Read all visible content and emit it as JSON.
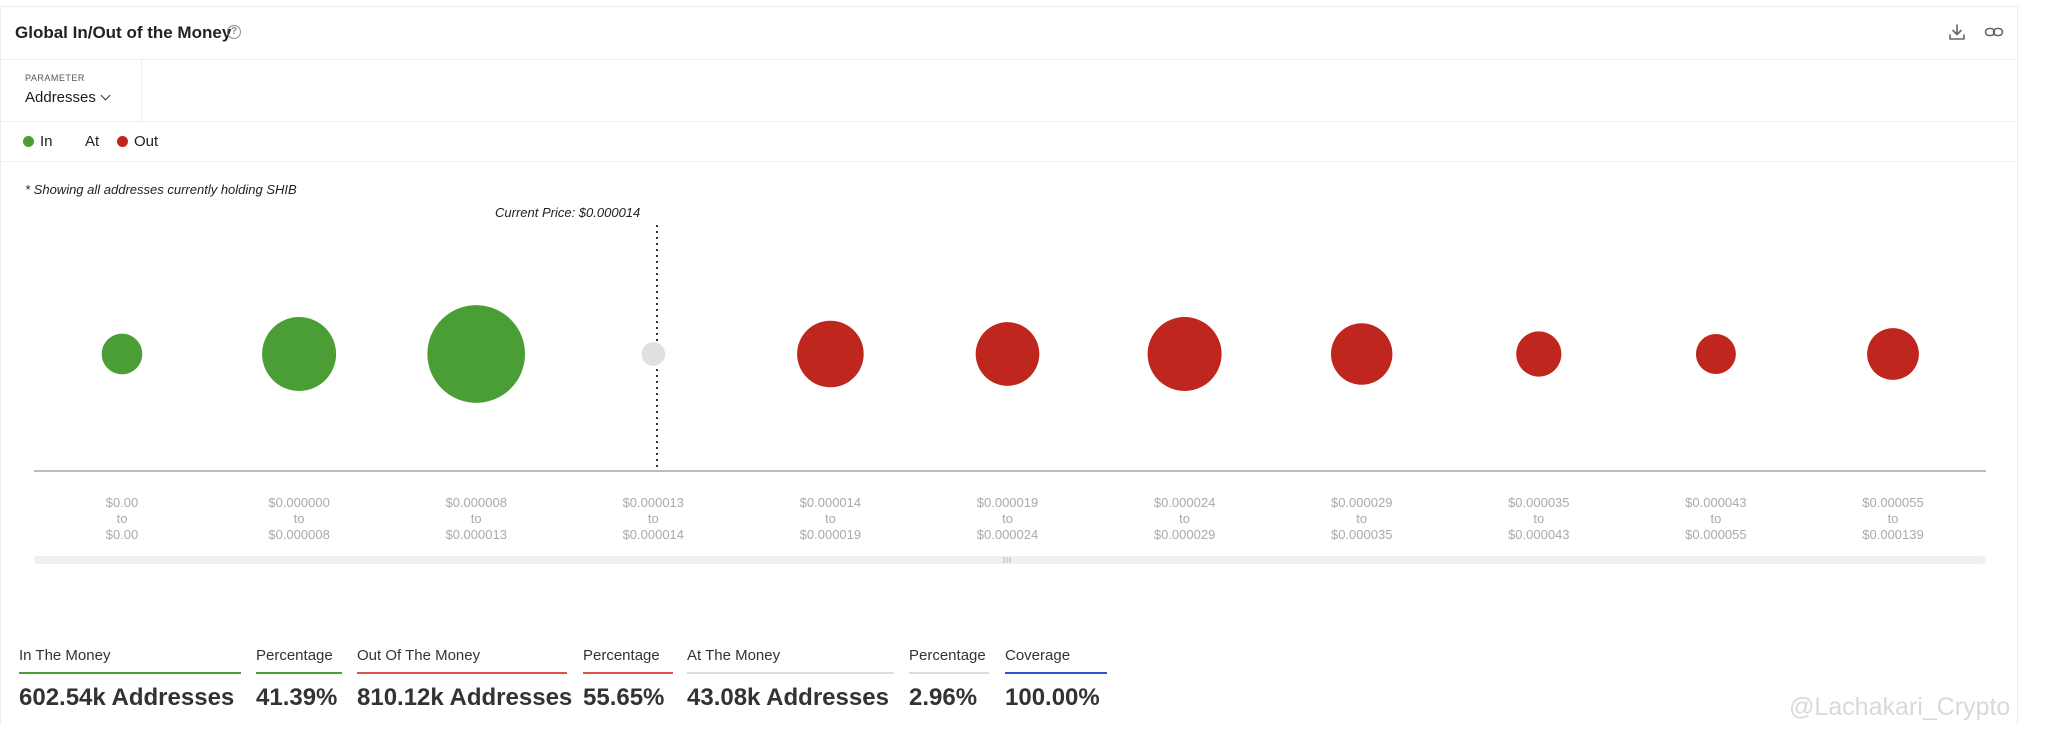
{
  "header": {
    "title": "Global In/Out of the Money",
    "help_icon": "question-circle-icon"
  },
  "parameter": {
    "label": "PARAMETER",
    "value": "Addresses"
  },
  "legend": [
    {
      "label": "In",
      "color": "#4a9e35"
    },
    {
      "label": "At",
      "color": ""
    },
    {
      "label": "Out",
      "color": "#bf261d"
    }
  ],
  "note": "* Showing all addresses currently holding SHIB",
  "current_price_label": "Current Price: $0.000014",
  "chart_data": {
    "type": "scatter",
    "current_price": 1.4e-05,
    "bubbles": [
      {
        "range": [
          "$0.00",
          "to",
          "$0.00"
        ],
        "status": "in",
        "relative_size": 0.55
      },
      {
        "range": [
          "$0.000000",
          "to",
          "$0.000008"
        ],
        "status": "in",
        "relative_size": 1.0
      },
      {
        "range": [
          "$0.000008",
          "to",
          "$0.000013"
        ],
        "status": "in",
        "relative_size": 1.32
      },
      {
        "range": [
          "$0.000013",
          "to",
          "$0.000014"
        ],
        "status": "at",
        "relative_size": 0.32
      },
      {
        "range": [
          "$0.000014",
          "to",
          "$0.000019"
        ],
        "status": "out",
        "relative_size": 0.9
      },
      {
        "range": [
          "$0.000019",
          "to",
          "$0.000024"
        ],
        "status": "out",
        "relative_size": 0.86
      },
      {
        "range": [
          "$0.000024",
          "to",
          "$0.000029"
        ],
        "status": "out",
        "relative_size": 1.0
      },
      {
        "range": [
          "$0.000029",
          "to",
          "$0.000035"
        ],
        "status": "out",
        "relative_size": 0.83
      },
      {
        "range": [
          "$0.000035",
          "to",
          "$0.000043"
        ],
        "status": "out",
        "relative_size": 0.61
      },
      {
        "range": [
          "$0.000043",
          "to",
          "$0.000055"
        ],
        "status": "out",
        "relative_size": 0.54
      },
      {
        "range": [
          "$0.000055",
          "to",
          "$0.000139"
        ],
        "status": "out",
        "relative_size": 0.7
      }
    ],
    "colors": {
      "in": "#4a9e35",
      "at": "#e0e0e0",
      "out": "#bf261d"
    }
  },
  "stats": [
    {
      "label": "In The Money",
      "value": "602.54k Addresses",
      "color": "#4a9e35"
    },
    {
      "label": "Percentage",
      "value": "41.39%",
      "color": "#4a9e35"
    },
    {
      "label": "Out Of The Money",
      "value": "810.12k Addresses",
      "color": "#d9534f"
    },
    {
      "label": "Percentage",
      "value": "55.65%",
      "color": "#d9534f"
    },
    {
      "label": "At The Money",
      "value": "43.08k Addresses",
      "color": "#dddddd"
    },
    {
      "label": "Percentage",
      "value": "2.96%",
      "color": "#dddddd"
    },
    {
      "label": "Coverage",
      "value": "100.00%",
      "color": "#2f55c9"
    }
  ],
  "watermark": "@Lachakari_Crypto"
}
